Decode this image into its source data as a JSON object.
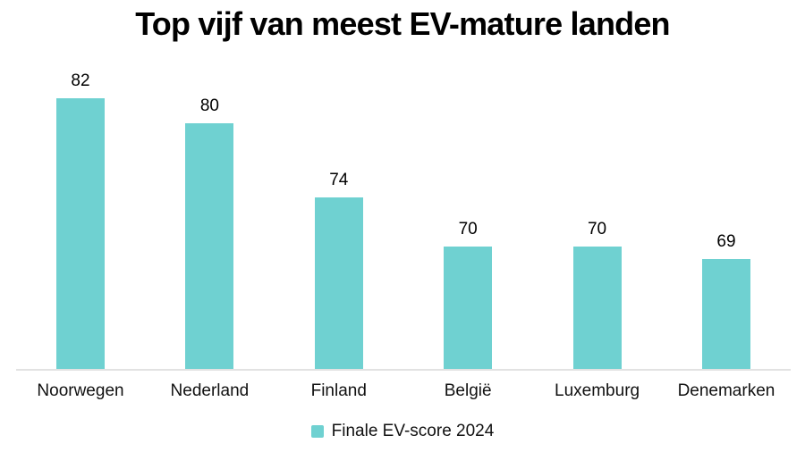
{
  "chart_data": {
    "type": "bar",
    "title": "Top vijf van meest EV-mature landen",
    "categories": [
      "Noorwegen",
      "Nederland",
      "Finland",
      "België",
      "Luxemburg",
      "Denemarken"
    ],
    "values": [
      82,
      80,
      74,
      70,
      70,
      69
    ],
    "series_name": "Finale EV-score 2024",
    "value_labels_shown": true,
    "xlabel": "",
    "ylabel": "",
    "ylim": [
      60,
      90
    ],
    "grid": false,
    "legend_position": "bottom",
    "colors": {
      "bar": "#6fd1d1",
      "axis_line": "#e2e2e2",
      "title": "#000000",
      "labels": "#111111"
    }
  }
}
